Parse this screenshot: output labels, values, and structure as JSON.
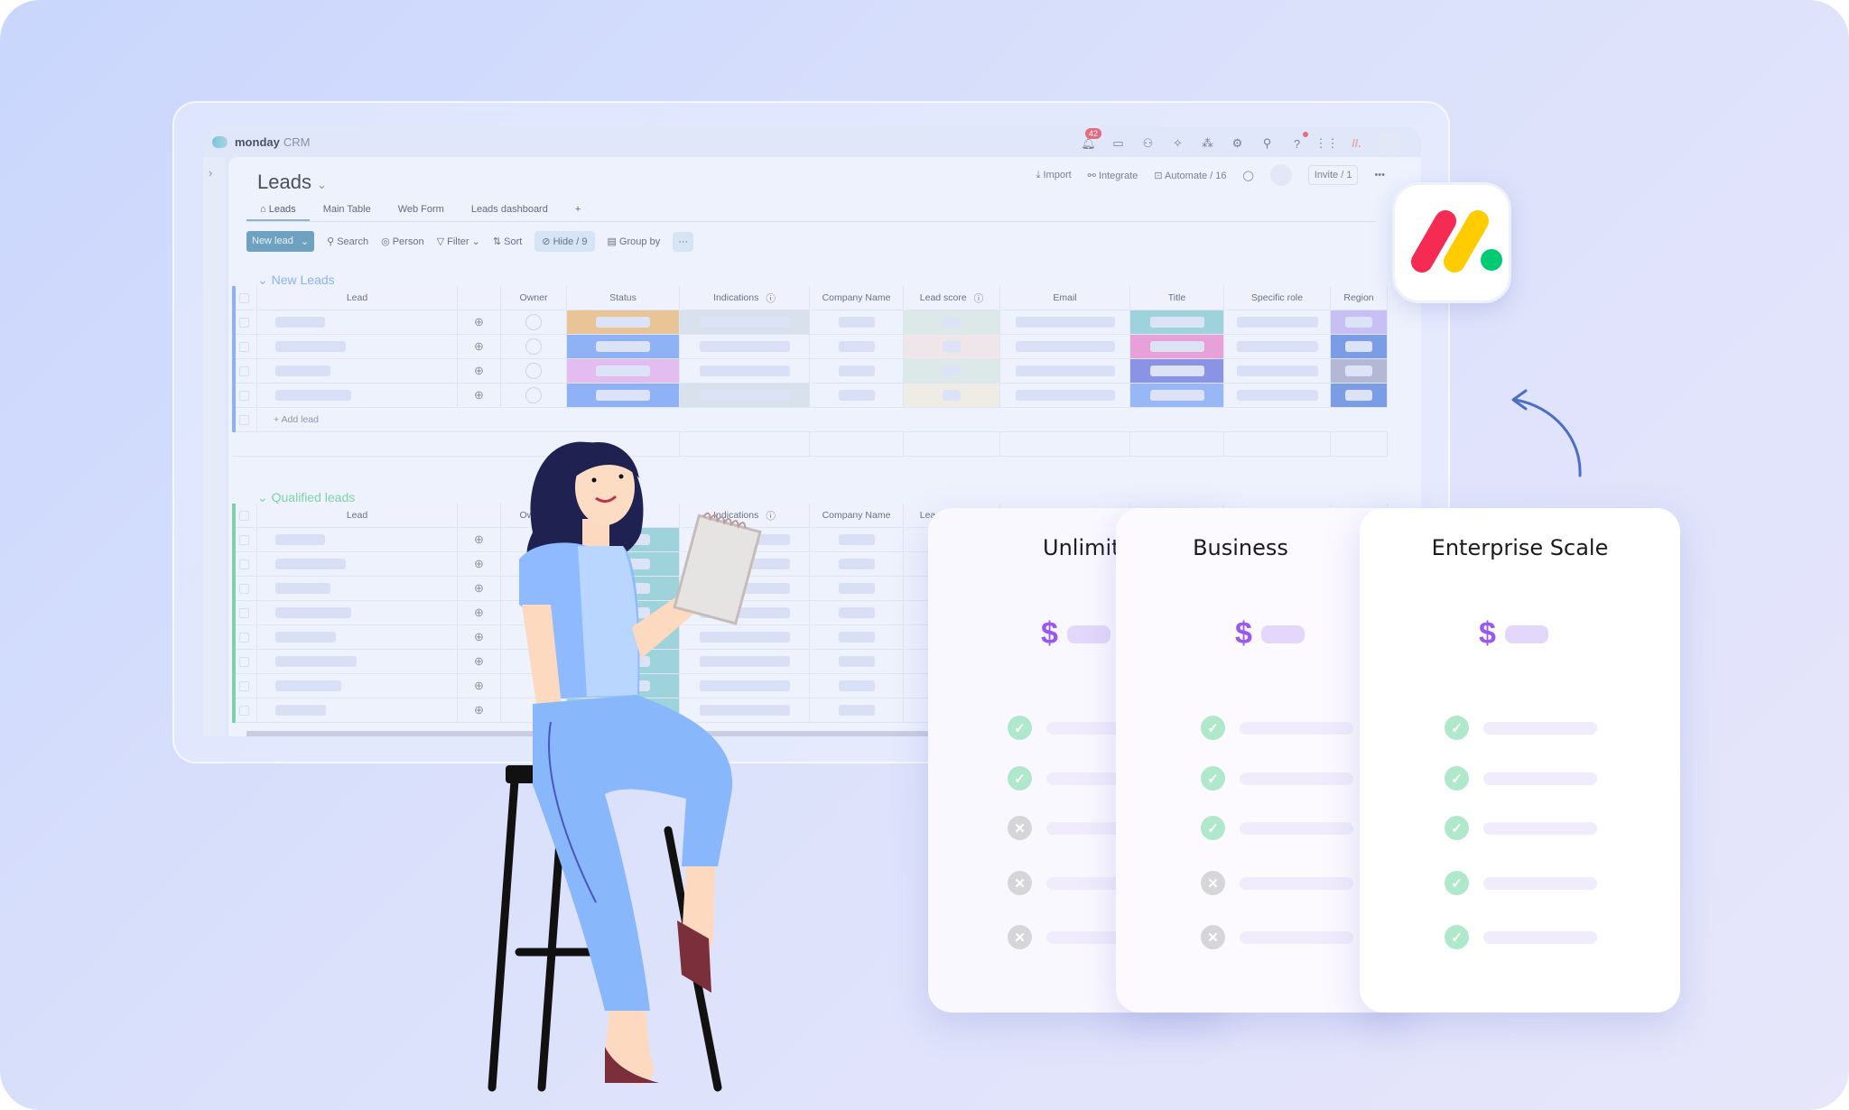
{
  "app": {
    "brand": "monday",
    "product": "CRM",
    "notifications": "42"
  },
  "board": {
    "title": "Leads",
    "tabs": [
      "Leads",
      "Main Table",
      "Web Form",
      "Leads dashboard",
      "+"
    ],
    "actions": {
      "import": "Import",
      "integrate": "Integrate",
      "automate": "Automate / 16",
      "invite": "Invite / 1",
      "more": "•••"
    }
  },
  "toolbar": {
    "new_lead": "New lead",
    "search": "Search",
    "person": "Person",
    "filter": "Filter",
    "sort": "Sort",
    "hide": "Hide / 9",
    "group_by": "Group by",
    "more": "···"
  },
  "columns": [
    "",
    "Lead",
    "",
    "Owner",
    "Status",
    "Indications",
    "Company Name",
    "Lead score",
    "Email",
    "Title",
    "Specific role",
    "Region"
  ],
  "groups": [
    {
      "name": "New Leads",
      "color": "#8db1f5",
      "add_label": "+ Add lead",
      "rows": [
        {
          "status": "#e8c496",
          "indications": "#d9e2ec",
          "score": "#dde9e9",
          "title": "#9fd3dc",
          "region": "#c8c0f4"
        },
        {
          "status": "#8fb1f5",
          "indications": "",
          "score": "#efe6ea",
          "title": "#e8a0d8",
          "region": "#7a9de6"
        },
        {
          "status": "#e3bdf0",
          "indications": "",
          "score": "#dde9e9",
          "title": "#8b93e4",
          "region": "#b5b8d4"
        },
        {
          "status": "#8fb1f5",
          "indications": "#d9e2ec",
          "score": "#efece6",
          "title": "#97b8f4",
          "region": "#7a9de6"
        }
      ]
    },
    {
      "name": "Qualified leads",
      "color": "#7fd2a6",
      "rows": [
        {
          "status": "#9fd3dc"
        },
        {
          "status": "#9fd3dc"
        },
        {
          "status": "#9fd3dc"
        },
        {
          "status": "#9fd3dc"
        },
        {
          "status": "#9fd3dc"
        },
        {
          "status": "#9fd3dc"
        },
        {
          "status": "#9fd3dc"
        },
        {
          "status": "#9fd3dc"
        }
      ]
    }
  ],
  "plans": [
    {
      "name": "Unlimited",
      "currency": "$",
      "features": [
        true,
        true,
        false,
        false,
        false
      ]
    },
    {
      "name": "Business",
      "currency": "$",
      "features": [
        true,
        true,
        true,
        false,
        false
      ]
    },
    {
      "name": "Enterprise Scale",
      "currency": "$",
      "features": [
        true,
        true,
        true,
        true,
        true
      ]
    }
  ],
  "colors": {
    "accent": "#9a58f0",
    "check": "#b0e8cc",
    "brand_red": "#f62b54",
    "brand_yellow": "#ffcc00",
    "brand_green": "#00ca72"
  }
}
